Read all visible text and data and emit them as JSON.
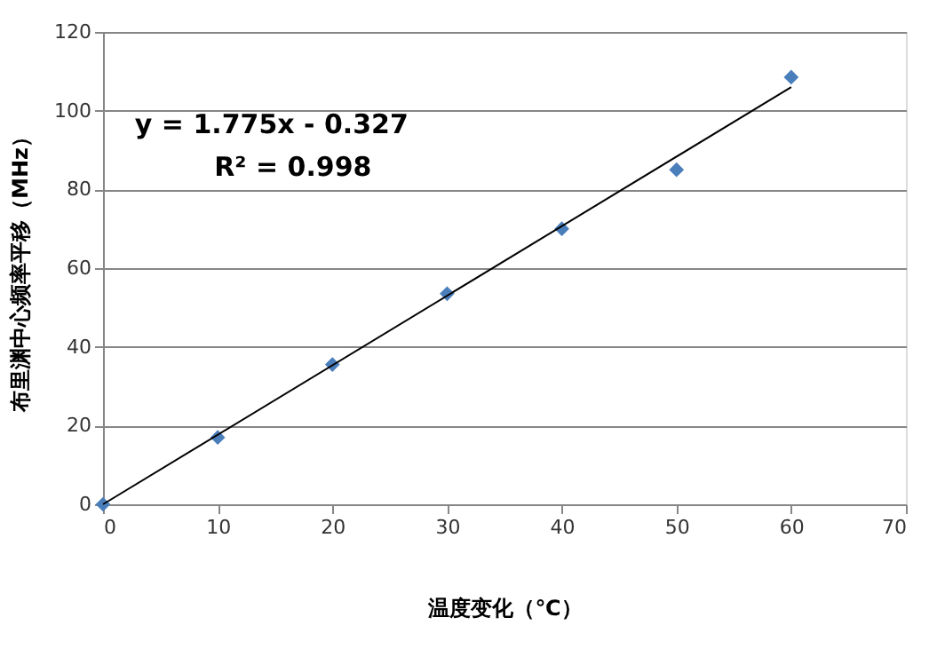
{
  "chart_data": {
    "type": "scatter",
    "xlabel": "温度变化（℃）",
    "ylabel": "布里渊中心频率平移（MHz）",
    "x": [
      0,
      10,
      20,
      30,
      40,
      50,
      60
    ],
    "series": [
      {
        "color": "#4a7ebb",
        "marker": "diamond",
        "values": [
          0,
          17,
          35.5,
          53.5,
          70,
          85,
          108.5
        ]
      },
      {
        "type": "line",
        "color": "#000000",
        "x": [
          0,
          60
        ],
        "values": [
          0,
          106
        ],
        "line_style": "solid"
      }
    ],
    "annotations": [
      "y = 1.775x - 0.327",
      "R² = 0.998"
    ],
    "xlim": [
      0,
      70
    ],
    "xticks": [
      0,
      10,
      20,
      30,
      40,
      50,
      60,
      70
    ],
    "ylim": [
      0,
      120
    ],
    "yticks": [
      0,
      20,
      40,
      60,
      80,
      100,
      120
    ],
    "grid": "y"
  }
}
